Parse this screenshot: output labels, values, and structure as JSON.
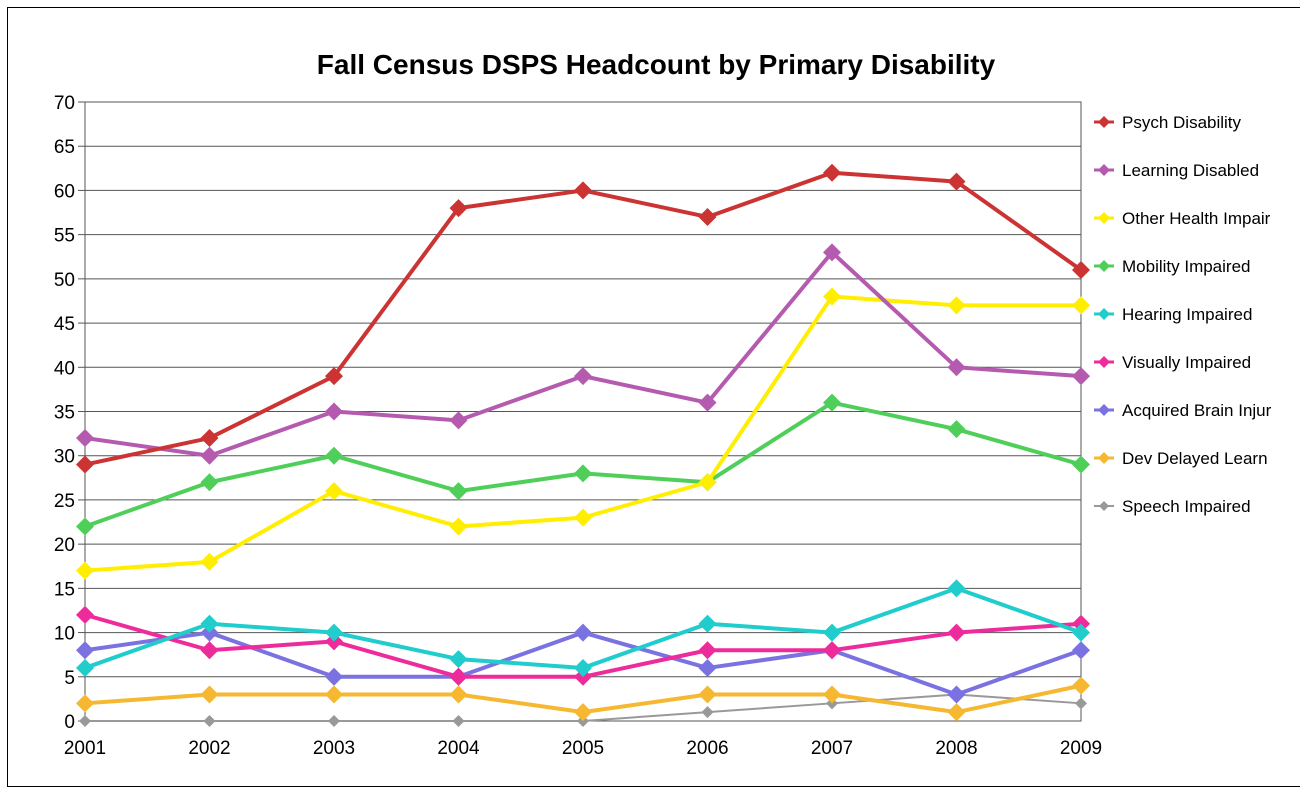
{
  "chart_data": {
    "type": "line",
    "title": "Fall Census DSPS Headcount by Primary Disability",
    "xlabel": "",
    "ylabel": "",
    "x": [
      "2001",
      "2002",
      "2003",
      "2004",
      "2005",
      "2006",
      "2007",
      "2008",
      "2009"
    ],
    "ylim": [
      0,
      70
    ],
    "yticks": [
      "0",
      "5",
      "10",
      "15",
      "20",
      "25",
      "30",
      "35",
      "40",
      "45",
      "50",
      "55",
      "60",
      "65",
      "70"
    ],
    "grid": true,
    "legend_position": "right",
    "series": [
      {
        "name": "Psych Disability",
        "color": "#cc3333",
        "values": [
          29,
          32,
          39,
          58,
          60,
          57,
          62,
          61,
          51
        ]
      },
      {
        "name": "Learning Disabled",
        "color": "#b45bb0",
        "values": [
          32,
          30,
          35,
          34,
          39,
          36,
          53,
          40,
          39
        ]
      },
      {
        "name": "Other Health Impair",
        "color": "#ffee00",
        "values": [
          17,
          18,
          26,
          22,
          23,
          27,
          48,
          47,
          47
        ]
      },
      {
        "name": "Mobility Impaired",
        "color": "#4fcf5a",
        "values": [
          22,
          27,
          30,
          26,
          28,
          27,
          36,
          33,
          29
        ]
      },
      {
        "name": "Hearing Impaired",
        "color": "#20cccc",
        "values": [
          6,
          11,
          10,
          7,
          6,
          11,
          10,
          15,
          10
        ]
      },
      {
        "name": "Visually Impaired",
        "color": "#ee2b9a",
        "values": [
          12,
          8,
          9,
          5,
          5,
          8,
          8,
          10,
          11
        ]
      },
      {
        "name": "Acquired Brain Injur",
        "color": "#7a72e0",
        "values": [
          8,
          10,
          5,
          5,
          10,
          6,
          8,
          3,
          8
        ]
      },
      {
        "name": "Dev Delayed Learn",
        "color": "#f5b830",
        "values": [
          2,
          3,
          3,
          3,
          1,
          3,
          3,
          1,
          4
        ]
      },
      {
        "name": "Speech Impaired",
        "color": "#999999",
        "values": [
          0,
          0,
          0,
          0,
          0,
          1,
          2,
          3,
          2
        ]
      }
    ]
  }
}
